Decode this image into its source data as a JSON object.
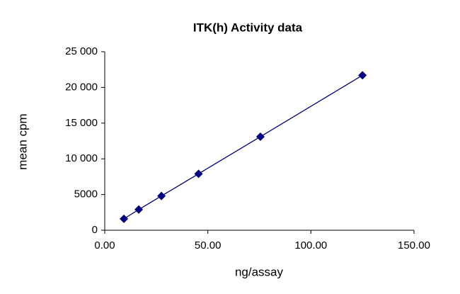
{
  "chart_data": {
    "type": "scatter",
    "title": "ITK(h)  Activity data",
    "x_label": "ng/assay",
    "y_label": "mean cpm",
    "x": [
      9.3,
      16.5,
      27.5,
      45.5,
      75.5,
      125
    ],
    "values": [
      1600,
      2900,
      4800,
      7900,
      13100,
      21700
    ],
    "color": "#000080",
    "line": true,
    "xlim": [
      0,
      150
    ],
    "xticks": [
      {
        "value": 0,
        "label": "0.00"
      },
      {
        "value": 50,
        "label": "50.00"
      },
      {
        "value": 100,
        "label": "100.00"
      },
      {
        "value": 150,
        "label": "150.00"
      }
    ],
    "ylim": [
      0,
      25000
    ],
    "yticks": [
      0,
      5000,
      {
        "value": 10000,
        "label": "10 000"
      },
      {
        "value": 15000,
        "label": "15 000"
      },
      {
        "value": 20000,
        "label": "20 000"
      },
      {
        "value": 25000,
        "label": "25 000"
      }
    ]
  }
}
